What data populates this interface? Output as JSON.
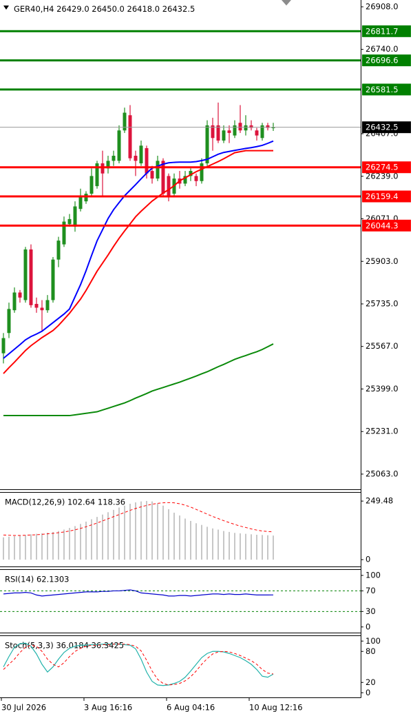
{
  "header": {
    "symbol": "GER40,H4",
    "ohlc": [
      "26429.0",
      "26450.0",
      "26418.0",
      "26432.5"
    ]
  },
  "chart_data": [
    {
      "type": "candlestick",
      "categories": [
        "30 Jul 2026",
        null,
        null,
        null,
        null,
        null,
        null,
        null,
        null,
        null,
        null,
        null,
        null,
        null,
        null,
        "3 Aug 16:16",
        null,
        null,
        null,
        null,
        null,
        null,
        null,
        null,
        null,
        null,
        null,
        null,
        null,
        null,
        "6 Aug 04:16",
        null,
        null,
        null,
        null,
        null,
        null,
        null,
        null,
        null,
        null,
        null,
        null,
        null,
        null,
        "10 Aug 12:16",
        null,
        null,
        null,
        null
      ],
      "open": [
        25540,
        25620,
        25710,
        25780,
        25750,
        25950,
        25735,
        25720,
        25710,
        25750,
        25910,
        25970,
        26050,
        26040,
        26110,
        26140,
        26170,
        26200,
        26290,
        26270,
        26300,
        26300,
        26420,
        26480,
        26320,
        26290,
        26350,
        26260,
        26230,
        26300,
        26240,
        26170,
        26230,
        26210,
        26240,
        26240,
        26220,
        26290,
        26440,
        26440,
        26380,
        26420,
        26400,
        26450,
        26420,
        26440,
        26420,
        26390,
        26440,
        26429
      ],
      "high": [
        25620,
        25740,
        25800,
        25790,
        25960,
        25970,
        25760,
        25750,
        25770,
        25920,
        26000,
        26080,
        26090,
        26140,
        26190,
        26180,
        26270,
        26300,
        26340,
        26320,
        26340,
        26440,
        26510,
        26520,
        26340,
        26380,
        26360,
        26280,
        26320,
        26310,
        26250,
        26250,
        26260,
        26260,
        26270,
        26250,
        26310,
        26460,
        26470,
        26530,
        26440,
        26440,
        26460,
        26520,
        26480,
        26460,
        26430,
        26450,
        26450,
        26450
      ],
      "low": [
        25500,
        25600,
        25700,
        25740,
        25740,
        25720,
        25700,
        25630,
        25700,
        25740,
        25880,
        25960,
        26040,
        26020,
        26100,
        26130,
        26160,
        26190,
        26160,
        26250,
        26280,
        26290,
        26410,
        26300,
        26240,
        26280,
        26230,
        26210,
        26220,
        26160,
        26140,
        26160,
        26190,
        26200,
        26220,
        26200,
        26210,
        26280,
        26340,
        26370,
        26370,
        26370,
        26390,
        26410,
        26400,
        26420,
        26380,
        26380,
        26420,
        26418
      ],
      "close": [
        25600,
        25715,
        25780,
        25760,
        25950,
        25730,
        25720,
        25710,
        25750,
        25910,
        25985,
        26060,
        26070,
        26120,
        26160,
        26170,
        26240,
        26290,
        26250,
        26300,
        26320,
        26420,
        26490,
        26310,
        26300,
        26360,
        26250,
        26230,
        26300,
        26170,
        26160,
        26230,
        26210,
        26240,
        26260,
        26220,
        26290,
        26440,
        26390,
        26380,
        26420,
        26410,
        26440,
        26420,
        26440,
        26430,
        26400,
        26440,
        26430,
        26432.5
      ],
      "up_color": "#1f8f1f",
      "down_color": "#dc143c",
      "series": [
        {
          "color": "#0000ff",
          "values": [
            25520,
            25538,
            25556,
            25574,
            25593,
            25606,
            25616,
            25627,
            25644,
            25661,
            25678,
            25695,
            25715,
            25763,
            25811,
            25866,
            25926,
            25984,
            26028,
            26072,
            26107,
            26135,
            26162,
            26184,
            26206,
            26229,
            26251,
            26271,
            26279,
            26287,
            26292,
            26294,
            26295,
            26295,
            26295,
            26297,
            26301,
            26306,
            26316,
            26326,
            26333,
            26337,
            26341,
            26345,
            26349,
            26352,
            26356,
            26361,
            26369,
            26378
          ]
        },
        {
          "color": "#ff0000",
          "values": [
            25460,
            25483,
            25505,
            25528,
            25551,
            25570,
            25586,
            25602,
            25616,
            25630,
            25650,
            25674,
            25698,
            25726,
            25754,
            25788,
            25826,
            25864,
            25896,
            25928,
            25962,
            25994,
            26023,
            26051,
            26079,
            26101,
            26121,
            26141,
            26157,
            26173,
            26186,
            26202,
            26221,
            26233,
            26245,
            26257,
            26267,
            26277,
            26287,
            26297,
            26308,
            26320,
            26332,
            26336,
            26340,
            26340,
            26340,
            26340,
            26340,
            26340
          ]
        },
        {
          "color": "#0a8a0a",
          "values": [
            25294,
            25294,
            25294,
            25294,
            25294,
            25294,
            25294,
            25294,
            25294,
            25294,
            25294,
            25294,
            25294,
            25297,
            25300,
            25303,
            25306,
            25309,
            25316,
            25323,
            25330,
            25337,
            25344,
            25353,
            25363,
            25372,
            25381,
            25391,
            25398,
            25405,
            25412,
            25419,
            25426,
            25434,
            25442,
            25450,
            25459,
            25467,
            25477,
            25487,
            25496,
            25506,
            25516,
            25524,
            25531,
            25539,
            25546,
            25555,
            25566,
            25577
          ]
        }
      ],
      "levels": [
        {
          "value": 26811.7,
          "color": "#008000"
        },
        {
          "value": 26696.6,
          "color": "#008000"
        },
        {
          "value": 26581.5,
          "color": "#008000"
        },
        {
          "value": 26274.5,
          "color": "#ff0000"
        },
        {
          "value": 26159.4,
          "color": "#ff0000"
        },
        {
          "value": 26044.3,
          "color": "#ff0000"
        }
      ],
      "last_price": 26432.5,
      "ylim": [
        25003,
        26935
      ],
      "yticks": [
        {
          "value": 26908,
          "label": "26908.0"
        },
        {
          "value": 26740,
          "label": "26740.0"
        },
        {
          "value": 26407,
          "label": "26407.0"
        },
        {
          "value": 26239,
          "label": "26239.0"
        },
        {
          "value": 26071,
          "label": "26071.0"
        },
        {
          "value": 25903,
          "label": "25903.0"
        },
        {
          "value": 25735,
          "label": "25735.0"
        },
        {
          "value": 25567,
          "label": "25567.0"
        },
        {
          "value": 25399,
          "label": "25399.0"
        },
        {
          "value": 25231,
          "label": "25231.0"
        },
        {
          "value": 25063,
          "label": "25063.0"
        }
      ]
    },
    {
      "type": "macd",
      "title": "MACD(12,26,9) 102.64 118.36",
      "values": [
        95,
        98,
        100,
        102,
        105,
        108,
        110,
        112,
        115,
        118,
        122,
        128,
        135,
        143,
        152,
        162,
        172,
        182,
        192,
        202,
        212,
        222,
        230,
        238,
        244,
        248,
        250,
        248,
        240,
        230,
        215,
        200,
        188,
        175,
        165,
        155,
        148,
        140,
        133,
        128,
        122,
        118,
        114,
        112,
        110,
        108,
        106,
        105,
        104,
        102.64
      ],
      "signal": [
        105,
        104,
        103,
        103,
        104,
        105,
        106,
        108,
        110,
        112,
        115,
        118,
        122,
        127,
        133,
        140,
        148,
        156,
        165,
        174,
        183,
        192,
        201,
        210,
        218,
        225,
        231,
        236,
        240,
        242,
        243,
        242,
        238,
        232,
        224,
        214,
        204,
        194,
        184,
        175,
        166,
        158,
        150,
        143,
        137,
        131,
        126,
        122,
        120,
        118.36
      ],
      "color": "#b4b4b4",
      "signal_color": "#ff0000",
      "ylim": [
        -29,
        288
      ],
      "yticks": [
        249.48,
        0
      ]
    },
    {
      "type": "rsi",
      "title": "RSI(14) 62.1303",
      "values": [
        64,
        65,
        66,
        66,
        67,
        66,
        62,
        60,
        61,
        62,
        63,
        64,
        65,
        66,
        67,
        68,
        68,
        68,
        69,
        69,
        70,
        70,
        71,
        72,
        70,
        66,
        65,
        64,
        63,
        62,
        60,
        60,
        61,
        61,
        60,
        61,
        62,
        63,
        64,
        64,
        63,
        64,
        63,
        63,
        64,
        63,
        62,
        62,
        62,
        62.1303
      ],
      "color": "#0000cd",
      "levels": [
        70,
        30
      ],
      "level_color": "#008000",
      "ylim": [
        -11,
        112
      ],
      "yticks": [
        100,
        70,
        30,
        0
      ]
    },
    {
      "type": "stochastic",
      "title": "Stoch(5,3,3) 36.0184 36.3425",
      "main": [
        50,
        70,
        88,
        95,
        96,
        90,
        75,
        55,
        40,
        50,
        65,
        78,
        86,
        90,
        92,
        92,
        93,
        93,
        94,
        94,
        94,
        94,
        93,
        92,
        85,
        65,
        40,
        22,
        15,
        14,
        15,
        18,
        22,
        30,
        42,
        55,
        68,
        76,
        80,
        80,
        79,
        76,
        72,
        68,
        62,
        55,
        45,
        32,
        30,
        36.0184
      ],
      "signal": [
        45,
        55,
        65,
        78,
        88,
        92,
        90,
        80,
        65,
        55,
        50,
        58,
        70,
        80,
        86,
        90,
        92,
        92,
        93,
        93,
        94,
        94,
        94,
        93,
        90,
        81,
        63,
        42,
        26,
        18,
        15,
        16,
        18,
        23,
        31,
        42,
        55,
        66,
        75,
        79,
        80,
        79,
        76,
        72,
        67,
        62,
        55,
        45,
        38,
        36.3425
      ],
      "main_color": "#20b2aa",
      "signal_color": "#ff0000",
      "ylim": [
        -9,
        111
      ],
      "yticks": [
        100,
        80,
        20,
        0
      ]
    }
  ]
}
